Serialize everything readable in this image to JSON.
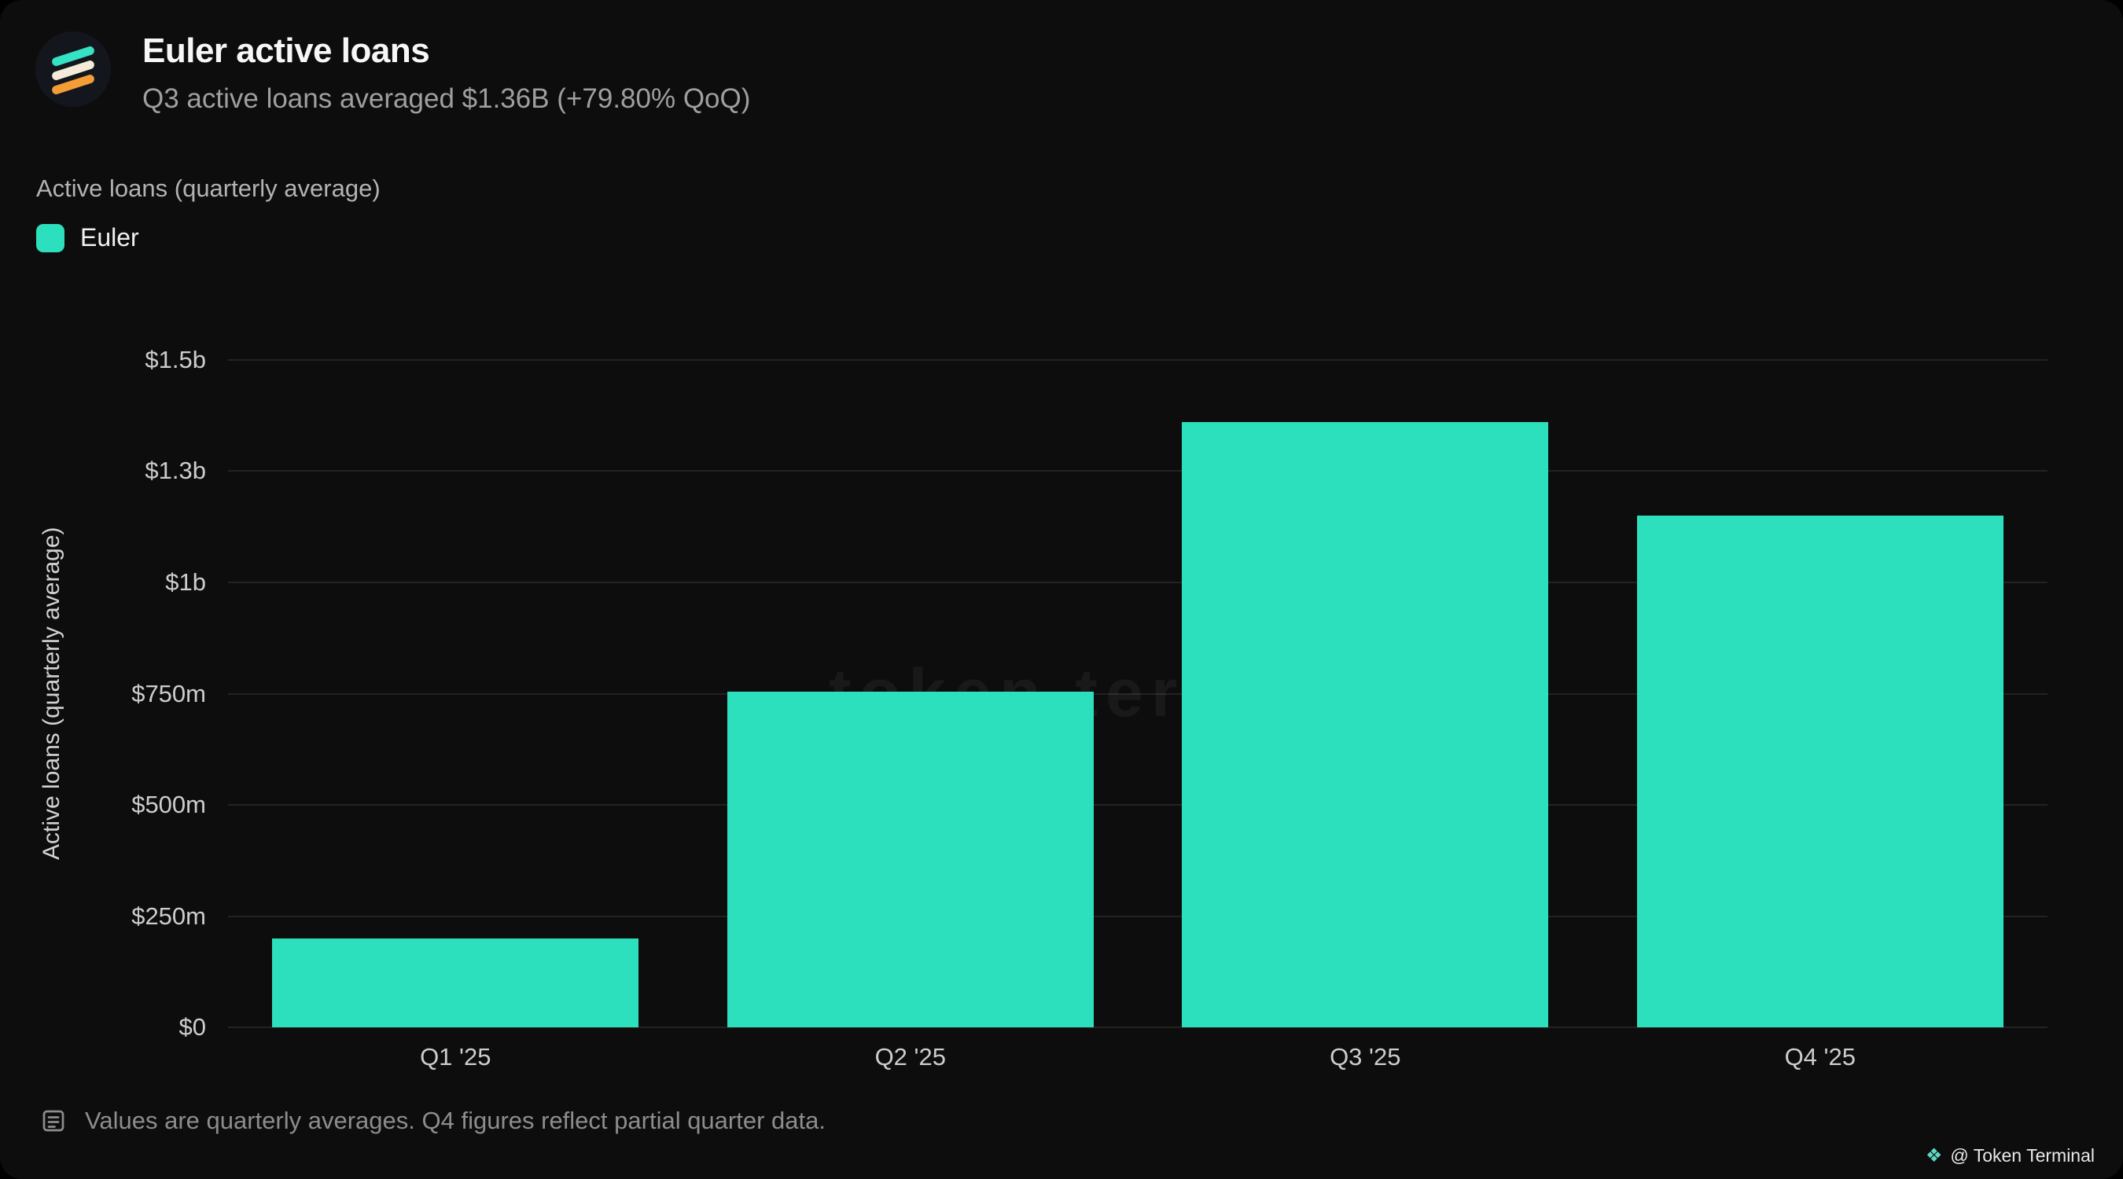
{
  "header": {
    "title": "Euler active loans",
    "subtitle": "Q3 active loans averaged $1.36B (+79.80% QoQ)"
  },
  "chart_header": {
    "metric_label": "Active loans (quarterly average)"
  },
  "legend": {
    "label": "Euler",
    "color": "#2ce0bd"
  },
  "chart_data": {
    "type": "bar",
    "title": "Euler active loans",
    "categories": [
      "Q1 '25",
      "Q2 '25",
      "Q3 '25",
      "Q4 '25"
    ],
    "series": [
      {
        "name": "Euler",
        "color": "#2ce0bd",
        "values": [
          200,
          755,
          1360,
          1150
        ]
      }
    ],
    "unit": "USD millions",
    "xlabel": "",
    "ylabel": "Active loans (quarterly average)",
    "ylim": [
      0,
      1500
    ],
    "grid": "horizontal",
    "legend_position": "top-left",
    "yticks": [
      {
        "value": 0,
        "label": "$0"
      },
      {
        "value": 250,
        "label": "$250m"
      },
      {
        "value": 500,
        "label": "$500m"
      },
      {
        "value": 750,
        "label": "$750m"
      },
      {
        "value": 1000,
        "label": "$1b"
      },
      {
        "value": 1250,
        "label": "$1.3b"
      },
      {
        "value": 1500,
        "label": "$1.5b"
      }
    ]
  },
  "watermark": "token terminal_",
  "footnote": {
    "text": "Values are quarterly averages. Q4 figures reflect partial quarter data."
  },
  "attribution": {
    "text": "@ Token Terminal"
  },
  "colors": {
    "background": "#0d0d0d",
    "bar": "#2ce0bd",
    "gridline": "#232323"
  }
}
